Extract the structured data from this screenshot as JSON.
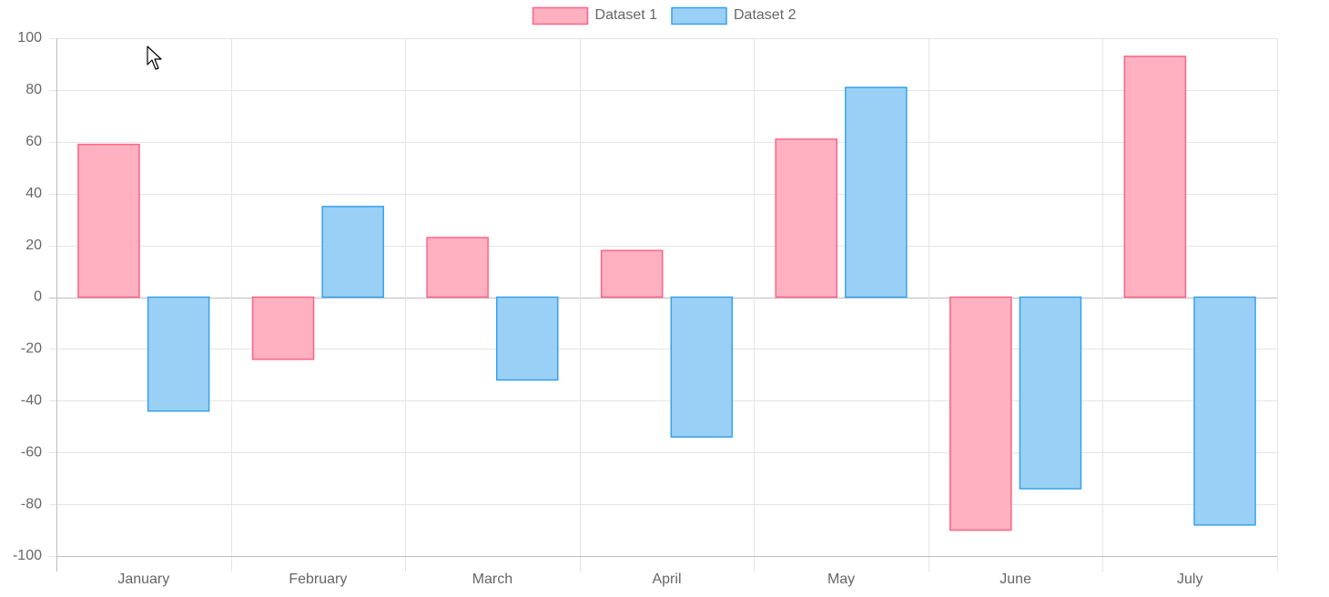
{
  "chart_data": {
    "type": "bar",
    "categories": [
      "January",
      "February",
      "March",
      "April",
      "May",
      "June",
      "July"
    ],
    "series": [
      {
        "name": "Dataset 1",
        "values": [
          59,
          -24,
          23,
          18,
          61,
          -90,
          93
        ],
        "fill": "#ffb1c1",
        "stroke": "#ff6384"
      },
      {
        "name": "Dataset 2",
        "values": [
          -44,
          35,
          -32,
          -54,
          81,
          -74,
          -88
        ],
        "fill": "#9ad0f5",
        "stroke": "#36a2eb"
      }
    ],
    "ylim": [
      -100,
      100
    ],
    "yticks": [
      100,
      80,
      60,
      40,
      20,
      0,
      -20,
      -40,
      -60,
      -80,
      -100
    ],
    "grid": true,
    "legend_position": "top-center",
    "title": "",
    "xlabel": "",
    "ylabel": ""
  },
  "colors": {
    "grid": "#e5e5e5",
    "zero_line": "#bdbdbd",
    "axis_text": "#666666"
  }
}
